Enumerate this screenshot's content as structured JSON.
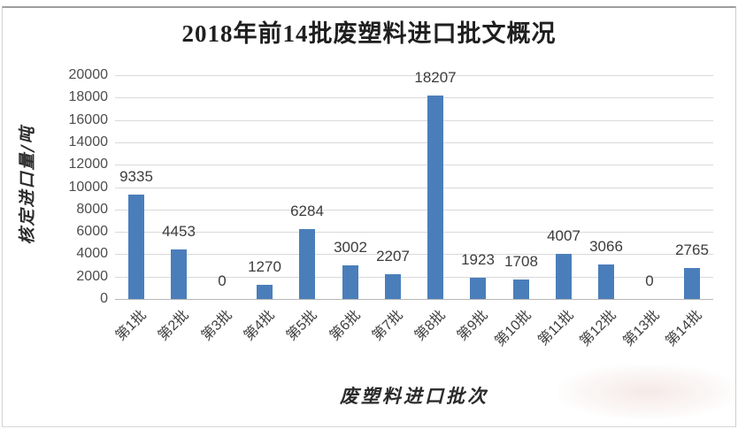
{
  "chart_data": {
    "type": "bar",
    "title": "2018年前14批废塑料进口批文概况",
    "categories": [
      "第1批",
      "第2批",
      "第3批",
      "第4批",
      "第5批",
      "第6批",
      "第7批",
      "第8批",
      "第9批",
      "第10批",
      "第11批",
      "第12批",
      "第13批",
      "第14批"
    ],
    "values": [
      9335,
      4453,
      0,
      1270,
      6284,
      3002,
      2207,
      18207,
      1923,
      1708,
      4007,
      3066,
      0,
      2765
    ],
    "xlabel": "废塑料进口批次",
    "ylabel": "核定进口量/吨",
    "ylim": [
      0,
      20000
    ],
    "ytick_step": 2000,
    "ytick_labels": [
      "0",
      "2000",
      "4000",
      "6000",
      "8000",
      "10000",
      "12000",
      "14000",
      "16000",
      "18000",
      "20000"
    ],
    "grid": true,
    "legend": "none",
    "data_labels": true,
    "colors": {
      "bar": "#4a7ebb",
      "gridline": "#d9d9d9",
      "axis_line": "#b7b7b7",
      "tick_text": "#4d4d4d",
      "label_text": "#3c3c3c",
      "title_text": "#1f1f1f"
    }
  }
}
